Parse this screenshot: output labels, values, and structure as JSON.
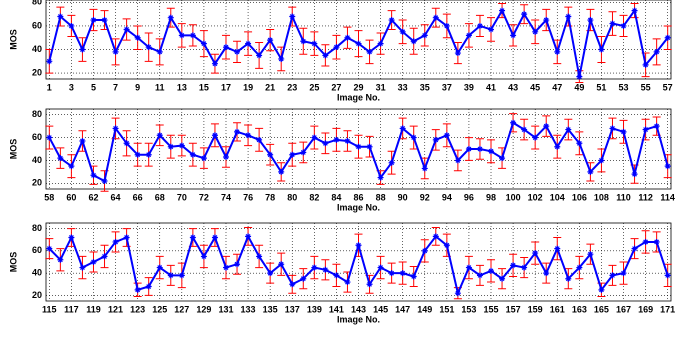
{
  "chart_data": [
    {
      "type": "line",
      "xlabel": "Image No.",
      "ylabel": "MOS",
      "grid": true,
      "line_color": "#0000ff",
      "error_color": "#ff0000",
      "xlim": [
        0.7,
        57.3
      ],
      "ylim": [
        15,
        82
      ],
      "yticks": [
        20,
        40,
        60,
        80
      ],
      "xticks": [
        1,
        3,
        5,
        7,
        9,
        11,
        13,
        15,
        17,
        19,
        21,
        23,
        25,
        27,
        29,
        31,
        33,
        35,
        37,
        39,
        41,
        43,
        45,
        47,
        49,
        51,
        53,
        55,
        57
      ],
      "x": [
        1,
        2,
        3,
        4,
        5,
        6,
        7,
        8,
        9,
        10,
        11,
        12,
        13,
        14,
        15,
        16,
        17,
        18,
        19,
        20,
        21,
        22,
        23,
        24,
        25,
        26,
        27,
        28,
        29,
        30,
        31,
        32,
        33,
        34,
        35,
        36,
        37,
        38,
        39,
        40,
        41,
        42,
        43,
        44,
        45,
        46,
        47,
        48,
        49,
        50,
        51,
        52,
        53,
        54,
        55,
        56,
        57
      ],
      "series": [
        {
          "values": [
            30,
            68,
            60,
            40,
            65,
            65,
            38,
            57,
            50,
            42,
            38,
            67,
            52,
            52,
            45,
            28,
            42,
            38,
            45,
            35,
            48,
            32,
            68,
            47,
            45,
            35,
            42,
            50,
            45,
            38,
            45,
            65,
            55,
            47,
            52,
            67,
            60,
            37,
            52,
            60,
            57,
            73,
            52,
            70,
            55,
            65,
            38,
            68,
            17,
            65,
            40,
            62,
            60,
            73,
            27,
            38,
            50
          ],
          "errors": [
            10,
            8,
            9,
            10,
            9,
            8,
            11,
            9,
            10,
            12,
            11,
            8,
            10,
            9,
            11,
            8,
            10,
            9,
            10,
            11,
            9,
            10,
            8,
            11,
            10,
            9,
            10,
            9,
            11,
            10,
            9,
            8,
            10,
            11,
            9,
            8,
            10,
            9,
            10,
            9,
            10,
            6,
            9,
            8,
            10,
            9,
            10,
            8,
            5,
            9,
            11,
            10,
            9,
            6,
            10,
            11,
            10
          ]
        }
      ]
    },
    {
      "type": "line",
      "xlabel": "Image No.",
      "ylabel": "MOS",
      "grid": true,
      "line_color": "#0000ff",
      "error_color": "#ff0000",
      "xlim": [
        57.7,
        114.3
      ],
      "ylim": [
        15,
        85
      ],
      "yticks": [
        20,
        40,
        60,
        80
      ],
      "xticks": [
        58,
        60,
        62,
        64,
        66,
        68,
        70,
        72,
        74,
        76,
        78,
        80,
        82,
        84,
        86,
        88,
        90,
        92,
        94,
        96,
        98,
        100,
        102,
        104,
        106,
        108,
        110,
        112,
        114
      ],
      "x": [
        58,
        59,
        60,
        61,
        62,
        63,
        64,
        65,
        66,
        67,
        68,
        69,
        70,
        71,
        72,
        73,
        74,
        75,
        76,
        77,
        78,
        79,
        80,
        81,
        82,
        83,
        84,
        85,
        86,
        87,
        88,
        89,
        90,
        91,
        92,
        93,
        94,
        95,
        96,
        97,
        98,
        99,
        100,
        101,
        102,
        103,
        104,
        105,
        106,
        107,
        108,
        109,
        110,
        111,
        112,
        113,
        114
      ],
      "series": [
        {
          "values": [
            60,
            42,
            35,
            57,
            27,
            22,
            68,
            55,
            45,
            45,
            62,
            52,
            53,
            45,
            42,
            62,
            43,
            65,
            62,
            58,
            45,
            30,
            45,
            47,
            60,
            55,
            58,
            57,
            52,
            52,
            25,
            38,
            68,
            60,
            33,
            58,
            62,
            40,
            50,
            50,
            48,
            42,
            73,
            67,
            60,
            70,
            52,
            67,
            55,
            30,
            40,
            68,
            65,
            28,
            67,
            70,
            35
          ],
          "errors": [
            10,
            9,
            10,
            9,
            8,
            9,
            9,
            11,
            10,
            10,
            9,
            10,
            9,
            10,
            9,
            10,
            9,
            8,
            9,
            10,
            9,
            8,
            10,
            9,
            10,
            9,
            10,
            9,
            10,
            9,
            6,
            10,
            9,
            10,
            9,
            9,
            10,
            9,
            10,
            9,
            10,
            9,
            8,
            9,
            10,
            9,
            10,
            9,
            10,
            8,
            10,
            9,
            10,
            8,
            9,
            8,
            10
          ]
        }
      ]
    },
    {
      "type": "line",
      "xlabel": "Image No.",
      "ylabel": "MOS",
      "grid": true,
      "line_color": "#0000ff",
      "error_color": "#ff0000",
      "xlim": [
        114.7,
        171.3
      ],
      "ylim": [
        15,
        85
      ],
      "yticks": [
        20,
        40,
        60,
        80
      ],
      "xticks": [
        115,
        117,
        119,
        121,
        123,
        125,
        127,
        129,
        131,
        133,
        135,
        137,
        139,
        141,
        143,
        145,
        147,
        149,
        151,
        153,
        155,
        157,
        159,
        161,
        163,
        165,
        167,
        169,
        171
      ],
      "x": [
        115,
        116,
        117,
        118,
        119,
        120,
        121,
        122,
        123,
        124,
        125,
        126,
        127,
        128,
        129,
        130,
        131,
        132,
        133,
        134,
        135,
        136,
        137,
        138,
        139,
        140,
        141,
        142,
        143,
        144,
        145,
        146,
        147,
        148,
        149,
        150,
        151,
        152,
        153,
        154,
        155,
        156,
        157,
        158,
        159,
        160,
        161,
        162,
        163,
        164,
        165,
        166,
        167,
        168,
        169,
        170,
        171
      ],
      "series": [
        {
          "values": [
            62,
            52,
            72,
            45,
            50,
            55,
            68,
            72,
            25,
            28,
            45,
            38,
            38,
            72,
            55,
            72,
            45,
            48,
            73,
            55,
            40,
            48,
            30,
            35,
            45,
            43,
            38,
            32,
            65,
            30,
            45,
            40,
            40,
            37,
            60,
            73,
            65,
            22,
            45,
            38,
            42,
            35,
            47,
            45,
            58,
            40,
            62,
            35,
            45,
            57,
            25,
            38,
            40,
            62,
            68,
            68,
            38
          ],
          "errors": [
            9,
            10,
            8,
            10,
            9,
            10,
            9,
            8,
            6,
            8,
            10,
            9,
            11,
            8,
            10,
            8,
            10,
            9,
            8,
            10,
            9,
            10,
            8,
            9,
            10,
            9,
            10,
            9,
            10,
            8,
            10,
            9,
            10,
            9,
            10,
            8,
            10,
            5,
            10,
            9,
            10,
            9,
            10,
            9,
            10,
            9,
            10,
            9,
            10,
            9,
            6,
            9,
            10,
            9,
            10,
            9,
            10
          ]
        }
      ]
    }
  ]
}
